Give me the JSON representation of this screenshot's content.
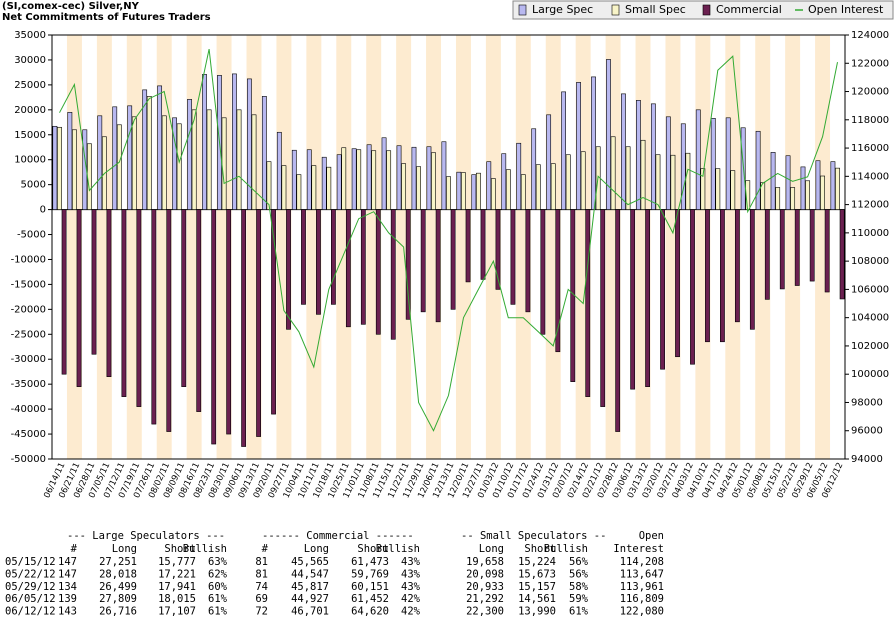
{
  "chart_data": {
    "type": "bar",
    "title": "(SI,comex-cec) Silver,NY",
    "subtitle": "Net Commitments of Futures Traders",
    "categories": [
      "06/14/11",
      "06/21/11",
      "06/28/11",
      "07/05/11",
      "07/12/11",
      "07/19/11",
      "07/26/11",
      "08/02/11",
      "08/09/11",
      "08/16/11",
      "08/23/11",
      "08/30/11",
      "09/06/11",
      "09/13/11",
      "09/20/11",
      "09/27/11",
      "10/04/11",
      "10/11/11",
      "10/18/11",
      "10/25/11",
      "11/01/11",
      "11/08/11",
      "11/15/11",
      "11/22/11",
      "11/29/11",
      "12/06/11",
      "12/13/11",
      "12/20/11",
      "12/27/11",
      "01/03/12",
      "01/10/12",
      "01/17/12",
      "01/24/12",
      "01/31/12",
      "02/07/12",
      "02/14/12",
      "02/21/12",
      "02/28/12",
      "03/06/12",
      "03/13/12",
      "03/20/12",
      "03/27/12",
      "04/03/12",
      "04/10/12",
      "04/17/12",
      "04/24/12",
      "05/01/12",
      "05/08/12",
      "05/15/12",
      "05/22/12",
      "05/29/12",
      "06/05/12",
      "06/12/12"
    ],
    "series": [
      {
        "name": "Large Spec",
        "color": "#b8b8f0",
        "values": [
          16700,
          19500,
          16000,
          18800,
          20600,
          20800,
          24000,
          24800,
          18400,
          22100,
          27100,
          26900,
          27200,
          26200,
          22700,
          15500,
          11900,
          12000,
          10500,
          11000,
          12200,
          13000,
          14400,
          12800,
          12500,
          12600,
          13600,
          7500,
          7000,
          9600,
          11200,
          13300,
          16200,
          19000,
          23600,
          25500,
          26600,
          30100,
          23200,
          21900,
          21200,
          18600,
          17200,
          20000,
          18300,
          18400,
          16400,
          15700,
          11474,
          10797,
          8558,
          9794,
          9609
        ]
      },
      {
        "name": "Small Spec",
        "color": "#f8f4c8",
        "values": [
          16500,
          16000,
          13200,
          14600,
          17000,
          18600,
          22700,
          18800,
          17200,
          20000,
          20000,
          18400,
          20000,
          19000,
          9600,
          8800,
          7000,
          8800,
          8500,
          12400,
          12000,
          11800,
          11800,
          9200,
          8600,
          11400,
          6600,
          7400,
          7300,
          6200,
          8000,
          7000,
          9000,
          9200,
          11000,
          11600,
          12600,
          14600,
          12600,
          13900,
          11000,
          10900,
          11300,
          8200,
          8200,
          7800,
          5800,
          5400,
          4434,
          4425,
          5776,
          6731,
          8310
        ]
      },
      {
        "name": "Commercial",
        "color": "#6b2050",
        "values": [
          -33000,
          -35500,
          -29000,
          -33500,
          -37500,
          -39500,
          -43000,
          -44500,
          -35500,
          -40500,
          -47000,
          -45000,
          -47500,
          -45500,
          -41000,
          -24000,
          -19000,
          -21000,
          -19000,
          -23500,
          -23000,
          -25000,
          -26000,
          -22000,
          -20500,
          -22500,
          -20000,
          -14500,
          -14000,
          -16000,
          -19000,
          -20500,
          -25000,
          -28500,
          -34500,
          -37500,
          -39500,
          -44500,
          -36000,
          -35500,
          -32000,
          -29500,
          -31000,
          -26500,
          -26500,
          -22500,
          -24000,
          -18000,
          -15908,
          -15222,
          -14334,
          -16525,
          -17919
        ]
      },
      {
        "name": "Open Interest",
        "color": "#33aa33",
        "type": "line",
        "axis": "y2",
        "values": [
          118500,
          120500,
          113000,
          114200,
          115000,
          118000,
          119500,
          120000,
          115000,
          118000,
          123000,
          113500,
          114000,
          113000,
          112000,
          104500,
          103000,
          100500,
          106000,
          108500,
          111000,
          111500,
          110000,
          109000,
          98000,
          96000,
          98500,
          104000,
          106000,
          108000,
          104000,
          104000,
          103000,
          102000,
          106000,
          105000,
          114000,
          113000,
          112000,
          112500,
          112000,
          110000,
          114500,
          114000,
          121500,
          122500,
          111500,
          113500,
          114208,
          113647,
          113961,
          116809,
          122080
        ]
      }
    ],
    "ylim": [
      -50000,
      35000
    ],
    "yticks": [
      -50000,
      -45000,
      -40000,
      -35000,
      -30000,
      -25000,
      -20000,
      -15000,
      -10000,
      -5000,
      0,
      5000,
      10000,
      15000,
      20000,
      25000,
      30000,
      35000
    ],
    "y2lim": [
      94000,
      124000
    ],
    "y2ticks": [
      94000,
      96000,
      98000,
      100000,
      102000,
      104000,
      106000,
      108000,
      110000,
      112000,
      114000,
      116000,
      118000,
      120000,
      122000,
      124000
    ],
    "grid": false,
    "legend": "top-right"
  },
  "table": {
    "group_headers": [
      "--- Large Speculators ---",
      "------ Commercial ------",
      "-- Small Speculators --",
      "Open"
    ],
    "columns": [
      "#",
      "Long",
      "Short",
      "Bullish",
      "#",
      "Long",
      "Short",
      "Bullish",
      "Long",
      "Short",
      "Bullish",
      "Interest"
    ],
    "rows": [
      [
        "05/15/12",
        "147",
        "27,251",
        "15,777",
        "63%",
        "81",
        "45,565",
        "61,473",
        "43%",
        "19,658",
        "15,224",
        "56%",
        "114,208"
      ],
      [
        "05/22/12",
        "147",
        "28,018",
        "17,221",
        "62%",
        "81",
        "44,547",
        "59,769",
        "43%",
        "20,098",
        "15,673",
        "56%",
        "113,647"
      ],
      [
        "05/29/12",
        "134",
        "26,499",
        "17,941",
        "60%",
        "74",
        "45,817",
        "60,151",
        "43%",
        "20,933",
        "15,157",
        "58%",
        "113,961"
      ],
      [
        "06/05/12",
        "139",
        "27,809",
        "18,015",
        "61%",
        "69",
        "44,927",
        "61,452",
        "42%",
        "21,292",
        "14,561",
        "59%",
        "116,809"
      ],
      [
        "06/12/12",
        "143",
        "26,716",
        "17,107",
        "61%",
        "72",
        "46,701",
        "64,620",
        "42%",
        "22,300",
        "13,990",
        "61%",
        "122,080"
      ]
    ]
  }
}
